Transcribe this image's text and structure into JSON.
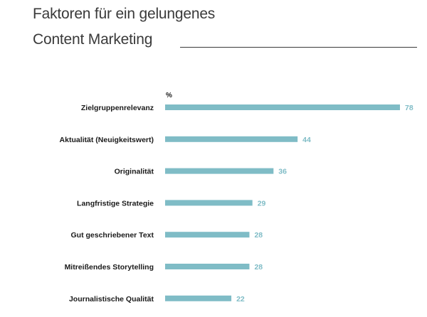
{
  "title": {
    "line1": "Faktoren für ein gelungenes",
    "line2": "Content Marketing"
  },
  "colors": {
    "bar": "#7fbcc6",
    "value_label": "#7fbcc6",
    "title": "#3a3a3a",
    "text": "#1a1a1a"
  },
  "chart_data": {
    "type": "bar",
    "orientation": "horizontal",
    "unit": "%",
    "categories": [
      "Zielgruppenrelevanz",
      "Aktualität (Neuigkeitswert)",
      "Originalität",
      "Langfristige Strategie",
      "Gut geschriebener Text",
      "Mitreißendes Storytelling",
      "Journalistische Qualität"
    ],
    "values": [
      78,
      44,
      36,
      29,
      28,
      28,
      22
    ],
    "xlim": [
      0,
      78
    ],
    "grid": false,
    "legend": "none"
  }
}
